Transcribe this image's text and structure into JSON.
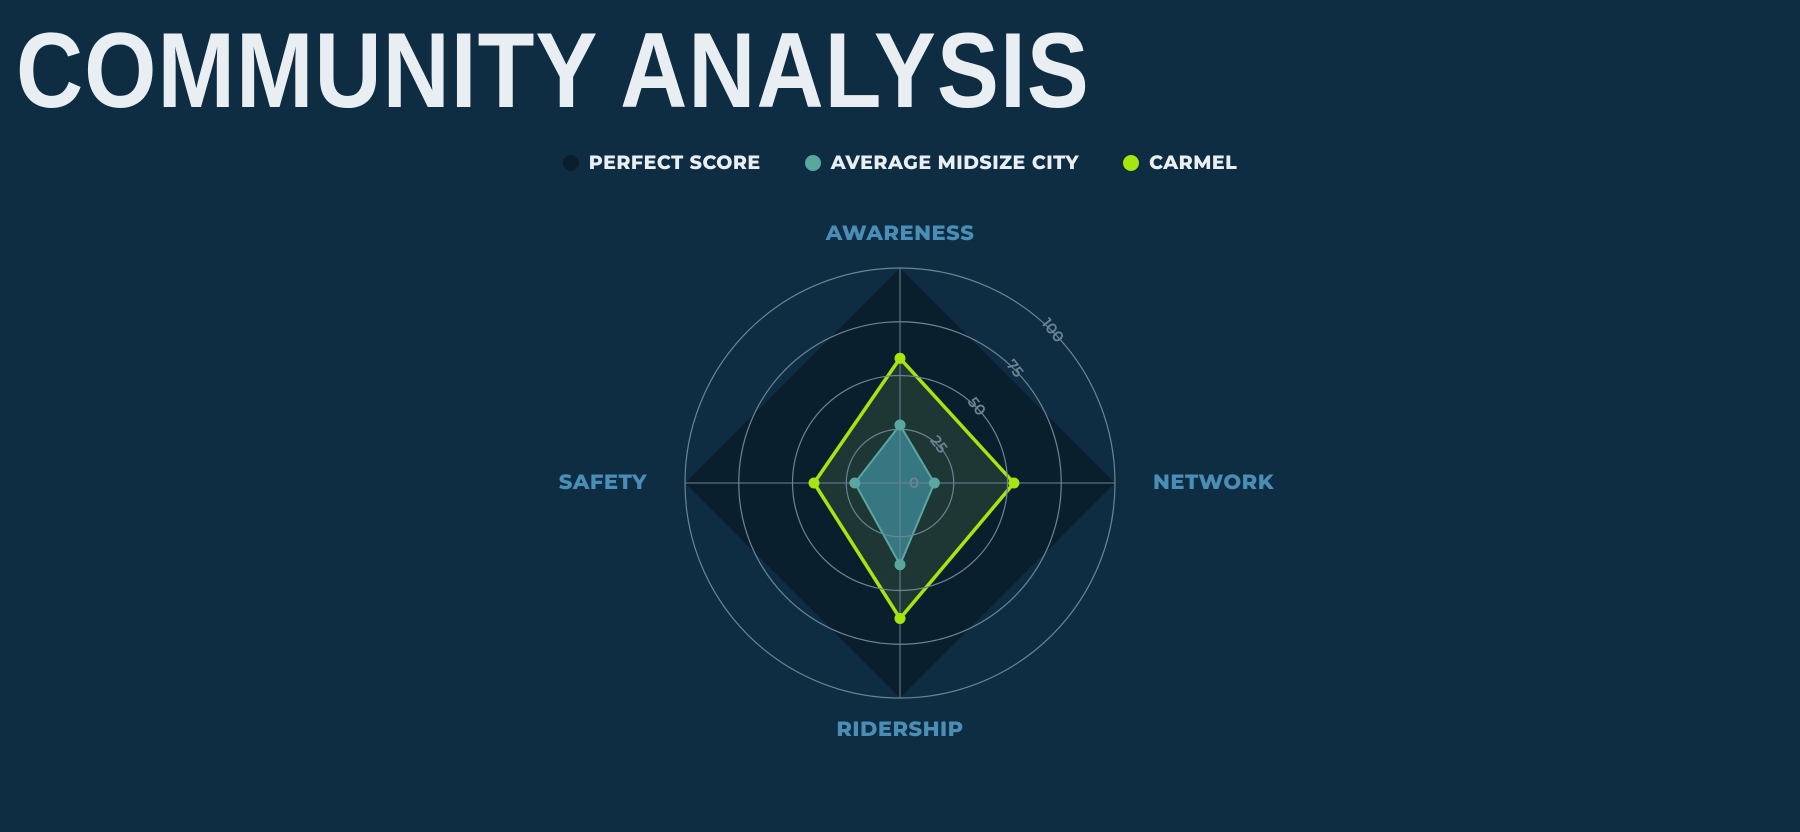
{
  "title": "COMMUNITY ANALYSIS",
  "chart": {
    "type": "radar",
    "background_color": "#0e2d42",
    "axes": [
      "AWARENESS",
      "NETWORK",
      "RIDERSHIP",
      "SAFETY"
    ],
    "axis_label_color": "#4a8db5",
    "axis_label_fontsize": 21,
    "grid_color": "#6b8494",
    "rings": [
      25,
      50,
      75,
      100
    ],
    "ring_labels": [
      "25",
      "50",
      "75",
      "100"
    ],
    "ring_label_center": "0",
    "max": 100,
    "series": [
      {
        "name": "PERFECT SCORE",
        "color": "#0a1f2e",
        "fill": "#0a1f2e",
        "fill_opacity": 1,
        "stroke_width": 0,
        "marker": false,
        "values": [
          100,
          100,
          100,
          100
        ]
      },
      {
        "name": "CARMEL",
        "color": "#a5e510",
        "fill": "#304b3a",
        "fill_opacity": 0.55,
        "stroke_width": 3.5,
        "marker": true,
        "values": [
          58,
          53,
          63,
          40
        ]
      },
      {
        "name": "AVERAGE MIDSIZE CITY",
        "color": "#5aa7a0",
        "fill": "#3b8290",
        "fill_opacity": 0.85,
        "stroke_width": 2,
        "marker": true,
        "values": [
          27,
          16,
          38,
          21
        ]
      }
    ],
    "legend": [
      {
        "label": "PERFECT SCORE",
        "color": "#0a1f2e"
      },
      {
        "label": "AVERAGE MIDSIZE CITY",
        "color": "#5aa7a0"
      },
      {
        "label": "CARMEL",
        "color": "#a5e510"
      }
    ]
  }
}
